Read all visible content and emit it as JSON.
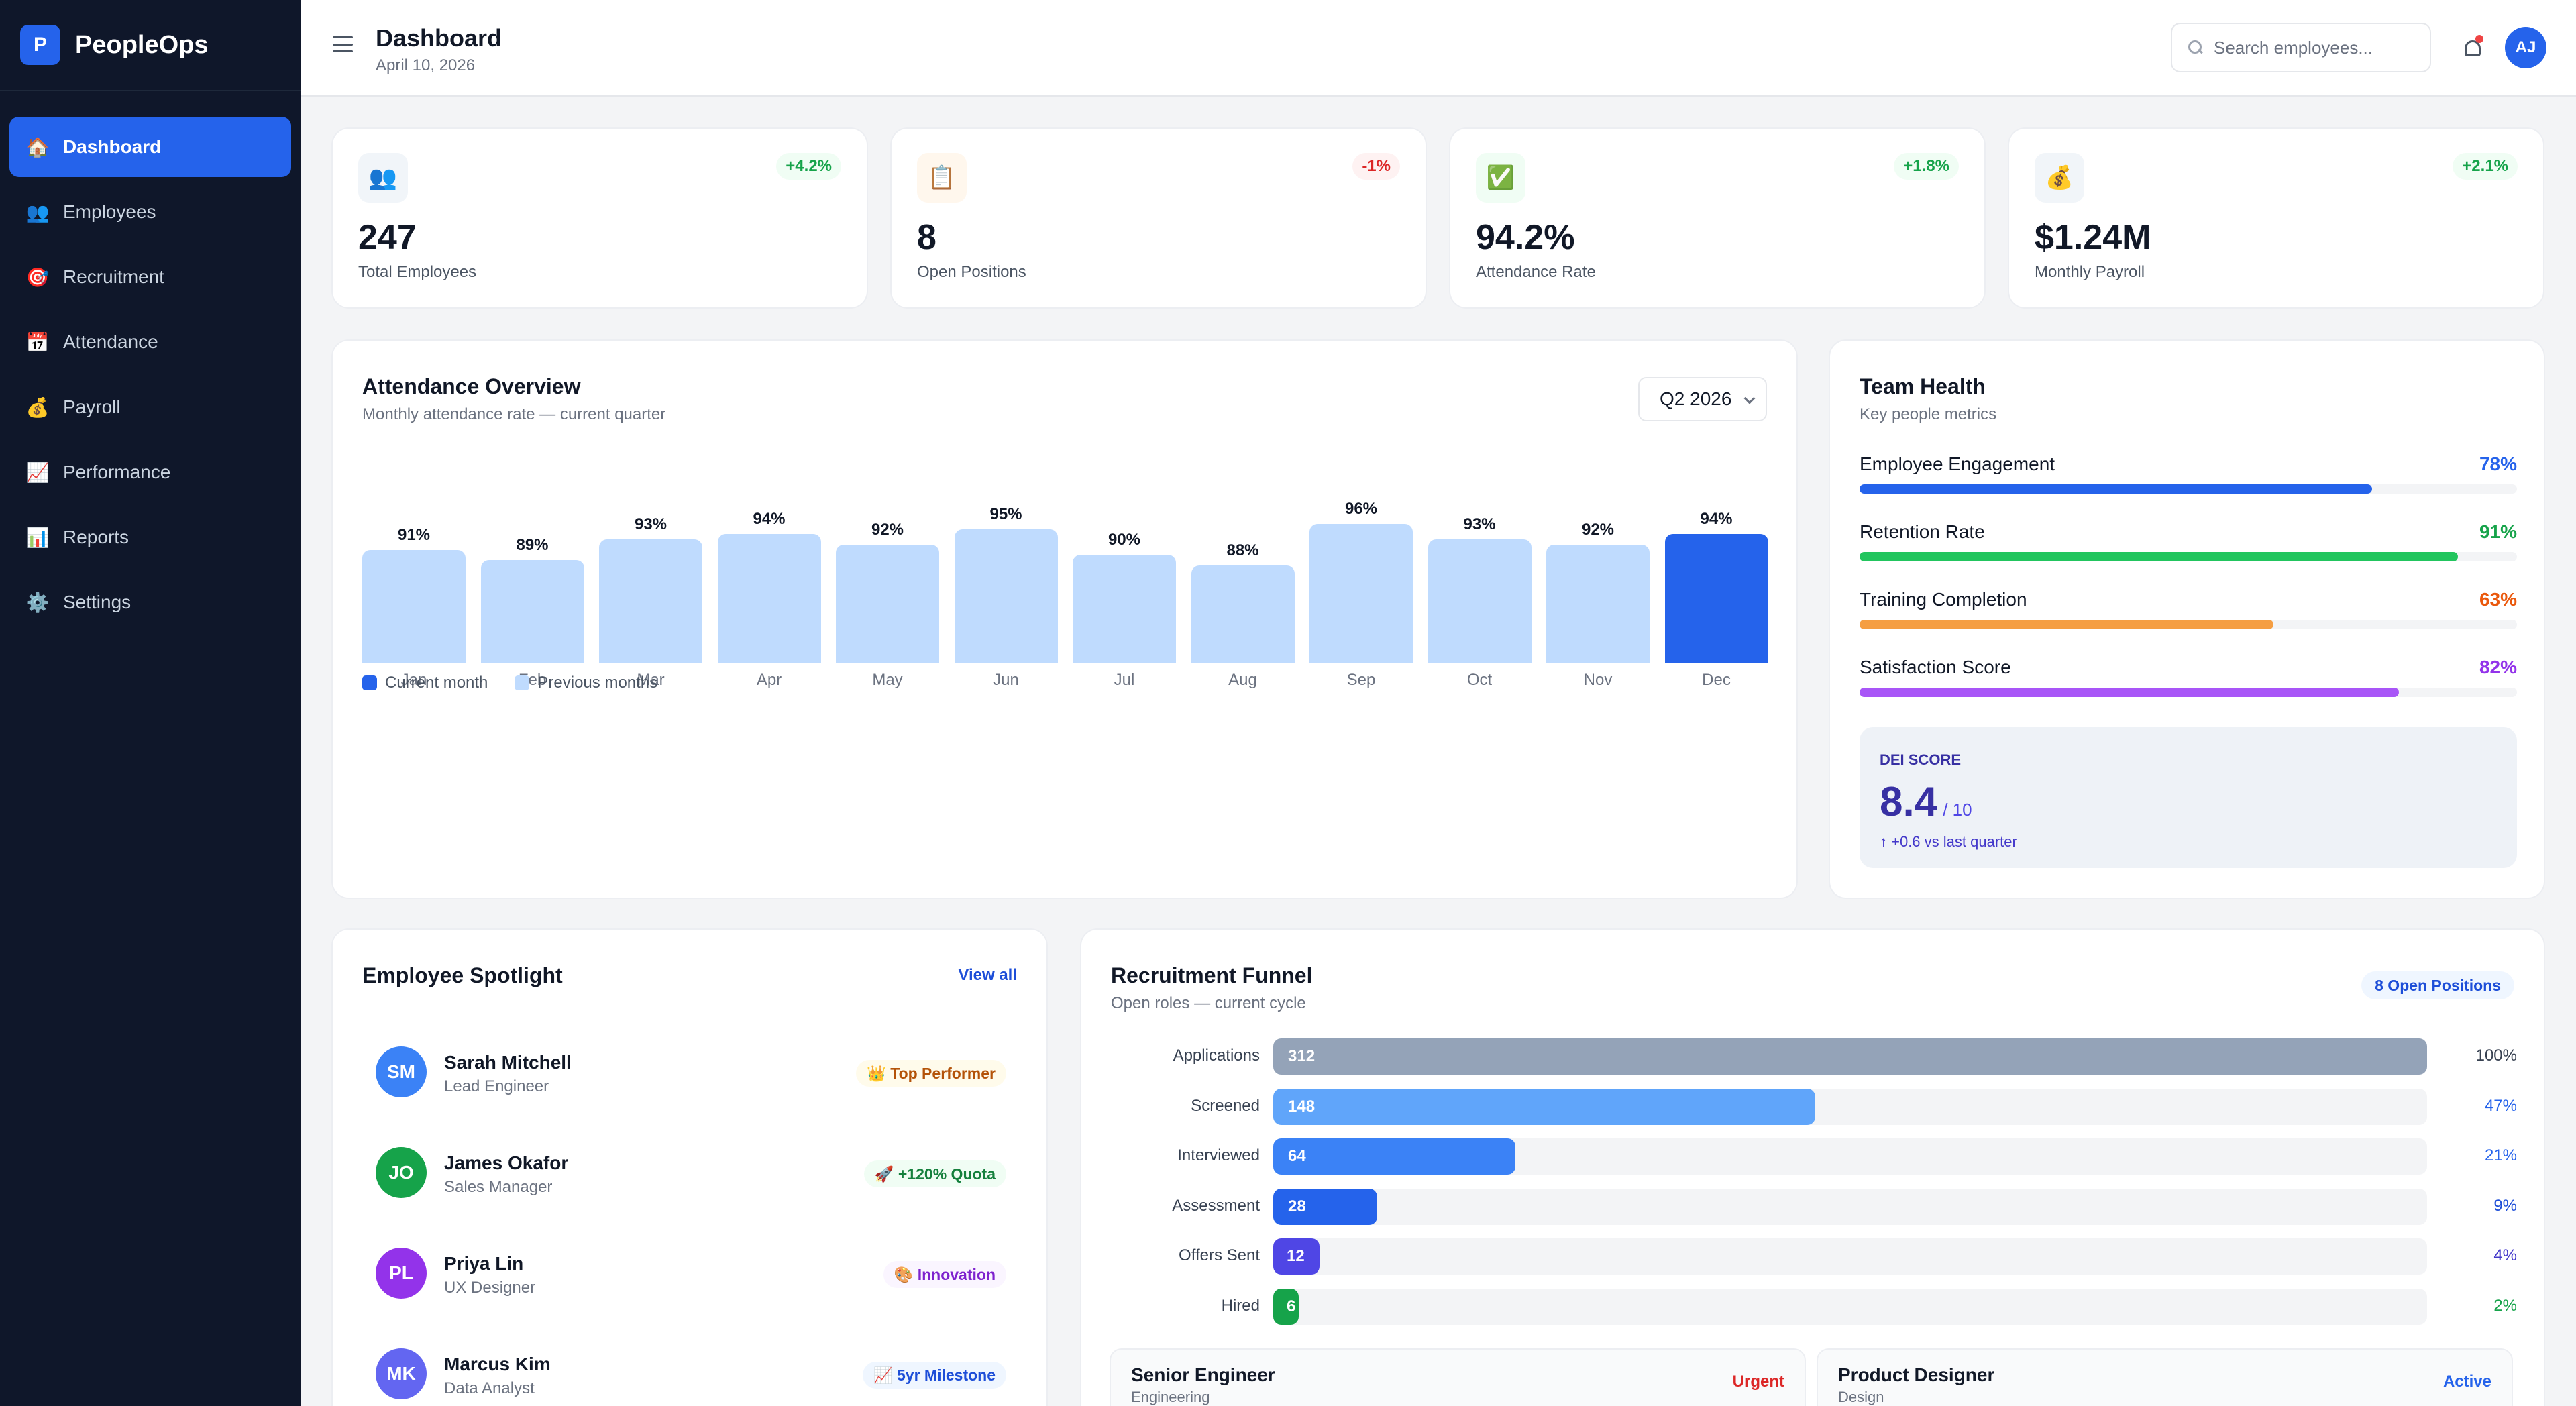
{
  "brand": {
    "logo_letter": "P",
    "name": "PeopleOps"
  },
  "nav": [
    {
      "icon": "🏠",
      "label": "Dashboard",
      "active": true
    },
    {
      "icon": "👥",
      "label": "Employees"
    },
    {
      "icon": "🎯",
      "label": "Recruitment"
    },
    {
      "icon": "📅",
      "label": "Attendance"
    },
    {
      "icon": "💰",
      "label": "Payroll"
    },
    {
      "icon": "📈",
      "label": "Performance"
    },
    {
      "icon": "📊",
      "label": "Reports"
    },
    {
      "icon": "⚙️",
      "label": "Settings"
    }
  ],
  "header": {
    "title": "Dashboard",
    "date": "April 10, 2026",
    "search_placeholder": "Search employees...",
    "avatar_initials": "AJ"
  },
  "stats": [
    {
      "icon": "👥",
      "change": "+4.2%",
      "direction": "up",
      "value": "247",
      "label": "Total Employees",
      "icon_bg": "#f1f5f9"
    },
    {
      "icon": "📋",
      "change": "-1%",
      "direction": "down",
      "value": "8",
      "label": "Open Positions",
      "icon_bg": "#fff7ed"
    },
    {
      "icon": "✅",
      "change": "+1.8%",
      "direction": "up",
      "value": "94.2%",
      "label": "Attendance Rate",
      "icon_bg": "#f0fdf4"
    },
    {
      "icon": "💰",
      "change": "+2.1%",
      "direction": "up",
      "value": "$1.24M",
      "label": "Monthly Payroll",
      "icon_bg": "#f1f5f9"
    }
  ],
  "attendance": {
    "title": "Attendance Overview",
    "subtitle": "Monthly attendance rate — current quarter",
    "period": "Q2 2026",
    "legend_current": "Current month",
    "legend_previous": "Previous months",
    "colors": {
      "current": "#2563eb",
      "previous": "#bfdbfe"
    }
  },
  "chart_data": {
    "type": "bar",
    "categories": [
      "Jan",
      "Feb",
      "Mar",
      "Apr",
      "May",
      "Jun",
      "Jul",
      "Aug",
      "Sep",
      "Oct",
      "Nov",
      "Dec"
    ],
    "values": [
      91,
      89,
      93,
      94,
      92,
      95,
      90,
      88,
      96,
      93,
      92,
      94
    ],
    "value_labels": [
      "91%",
      "89%",
      "93%",
      "94%",
      "92%",
      "95%",
      "90%",
      "88%",
      "96%",
      "93%",
      "92%",
      "94%"
    ],
    "highlight_index": 11,
    "title": "Attendance Overview",
    "ylim": [
      0,
      100
    ],
    "grid": false,
    "legend_placement": "bottom-left"
  },
  "team_health": {
    "title": "Team Health",
    "subtitle": "Key people metrics",
    "metrics": [
      {
        "name": "Employee Engagement",
        "value": 78,
        "label": "78%",
        "color": "#2563eb",
        "text_color": "#2563eb"
      },
      {
        "name": "Retention Rate",
        "value": 91,
        "label": "91%",
        "color": "#22c55e",
        "text_color": "#16a34a"
      },
      {
        "name": "Training Completion",
        "value": 63,
        "label": "63%",
        "color": "#f59e42",
        "text_color": "#ea580c"
      },
      {
        "name": "Satisfaction Score",
        "value": 82,
        "label": "82%",
        "color": "#a855f7",
        "text_color": "#9333ea"
      }
    ],
    "dei": {
      "label": "DEI SCORE",
      "score": "8.4",
      "max": "/ 10",
      "change": "↑ +0.6 vs last quarter"
    }
  },
  "spotlight": {
    "title": "Employee Spotlight",
    "view_all": "View all",
    "people": [
      {
        "initials": "SM",
        "name": "Sarah Mitchell",
        "role": "Lead Engineer",
        "badge": "👑 Top Performer",
        "avatar_color": "#3b82f6",
        "badge_bg": "#fffbeb",
        "badge_color": "#b45309"
      },
      {
        "initials": "JO",
        "name": "James Okafor",
        "role": "Sales Manager",
        "badge": "🚀 +120% Quota",
        "avatar_color": "#16a34a",
        "badge_bg": "#f0fdf4",
        "badge_color": "#15803d"
      },
      {
        "initials": "PL",
        "name": "Priya Lin",
        "role": "UX Designer",
        "badge": "🎨 Innovation",
        "avatar_color": "#9333ea",
        "badge_bg": "#faf5ff",
        "badge_color": "#7e22ce"
      },
      {
        "initials": "MK",
        "name": "Marcus Kim",
        "role": "Data Analyst",
        "badge": "📈 5yr Milestone",
        "avatar_color": "#6366f1",
        "badge_bg": "#eff6ff",
        "badge_color": "#1d4ed8"
      }
    ]
  },
  "funnel": {
    "title": "Recruitment Funnel",
    "subtitle": "Open roles — current cycle",
    "badge": "8 Open Positions",
    "stages": [
      {
        "label": "Applications",
        "count": "312",
        "percent": 100,
        "percent_label": "100%",
        "color": "#94a3b8",
        "pct_color": "#374151"
      },
      {
        "label": "Screened",
        "count": "148",
        "percent": 47,
        "percent_label": "47%",
        "color": "#60a5fa",
        "pct_color": "#2563eb"
      },
      {
        "label": "Interviewed",
        "count": "64",
        "percent": 21,
        "percent_label": "21%",
        "color": "#3b82f6",
        "pct_color": "#2563eb"
      },
      {
        "label": "Assessment",
        "count": "28",
        "percent": 9,
        "percent_label": "9%",
        "color": "#2563eb",
        "pct_color": "#1d4ed8"
      },
      {
        "label": "Offers Sent",
        "count": "12",
        "percent": 4,
        "percent_label": "4%",
        "color": "#4f46e5",
        "pct_color": "#4338ca"
      },
      {
        "label": "Hired",
        "count": "6",
        "percent": 2,
        "percent_label": "2%",
        "color": "#16a34a",
        "pct_color": "#16a34a"
      }
    ],
    "roles": [
      {
        "title": "Senior Engineer",
        "dept": "Engineering",
        "status": "Urgent",
        "status_color": "#dc2626"
      },
      {
        "title": "Product Designer",
        "dept": "Design",
        "status": "Active",
        "status_color": "#2563eb"
      }
    ]
  }
}
